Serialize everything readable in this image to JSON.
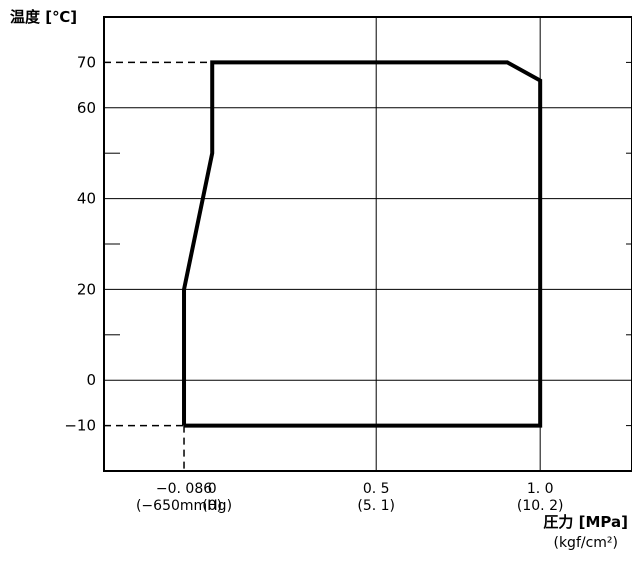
{
  "chart_data": {
    "type": "line",
    "ylabel": "温度 [℃]",
    "xlabel": "圧力 [MPa]",
    "xlabel_unit": "(kgf/cm²)",
    "ylim": [
      -20,
      80
    ],
    "xlim": [
      -0.33,
      1.28
    ],
    "grid": true,
    "x_ticks": [
      {
        "value": -0.086,
        "label": "−0. 086",
        "sub": "(−650mmHg)"
      },
      {
        "value": 0,
        "label": "0",
        "sub": "(0)"
      },
      {
        "value": 0.5,
        "label": "0. 5",
        "sub": "(5. 1)"
      },
      {
        "value": 1.0,
        "label": "1. 0",
        "sub": "(10. 2)"
      }
    ],
    "x_grid": [
      0.5,
      1.0
    ],
    "y_ticks": [
      {
        "value": 70,
        "label": "70"
      },
      {
        "value": 60,
        "label": "60"
      },
      {
        "value": 40,
        "label": "40"
      },
      {
        "value": 20,
        "label": "20"
      },
      {
        "value": 0,
        "label": "0"
      },
      {
        "value": -10,
        "label": "−10"
      }
    ],
    "y_grid": [
      60,
      40,
      20,
      0
    ],
    "minor_y_ticks": [
      50,
      30,
      10
    ],
    "series": [
      {
        "x": [
          -0.086,
          -0.086,
          0,
          0,
          0.9,
          1.0,
          1.0,
          -0.086
        ],
        "y": [
          -10,
          20,
          50,
          70,
          70,
          66,
          -10,
          -10
        ]
      }
    ],
    "reference_lines": [
      {
        "x": [
          -0.33,
          0
        ],
        "y": [
          70,
          70
        ]
      },
      {
        "x": [
          -0.33,
          -0.086
        ],
        "y": [
          -10,
          -10
        ]
      },
      {
        "x": [
          -0.086,
          -0.086
        ],
        "y": [
          -10,
          -20
        ]
      }
    ]
  }
}
